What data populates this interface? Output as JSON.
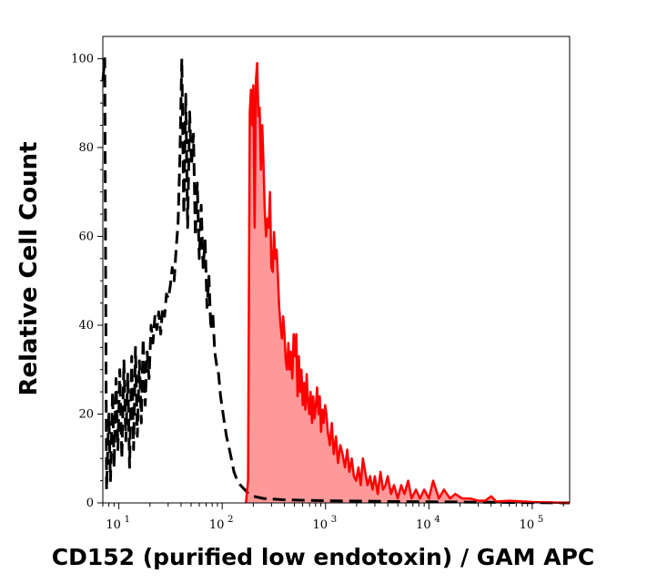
{
  "chart_data": {
    "type": "area",
    "xlabel": "CD152 (purified low endotoxin) / GAM APC",
    "ylabel": "Relative Cell Count",
    "x_scale": "log",
    "xlim": [
      7,
      230000
    ],
    "ylim": [
      0,
      105
    ],
    "x_ticks": [
      {
        "base": "10",
        "exp": "1",
        "value": 10
      },
      {
        "base": "10",
        "exp": "2",
        "value": 100
      },
      {
        "base": "10",
        "exp": "3",
        "value": 1000
      },
      {
        "base": "10",
        "exp": "4",
        "value": 10000
      },
      {
        "base": "10",
        "exp": "5",
        "value": 100000
      }
    ],
    "y_ticks": [
      "0",
      "20",
      "40",
      "60",
      "80",
      "100"
    ],
    "y_tick_values": [
      0,
      20,
      40,
      60,
      80,
      100
    ],
    "series": [
      {
        "style": "dashed",
        "color": "#000000",
        "fill": "none",
        "x": [
          7,
          7.3,
          7.6,
          8,
          8.3,
          8.7,
          9,
          9.4,
          9.8,
          10.2,
          10.7,
          11.2,
          11.7,
          12.2,
          12.7,
          13.3,
          13.9,
          14.5,
          15.1,
          15.8,
          16.5,
          17.2,
          18,
          18.8,
          19.6,
          20.5,
          21.4,
          22.3,
          23.3,
          24.3,
          25.4,
          26.5,
          27.7,
          28.9,
          30.2,
          31.5,
          32.9,
          34.3,
          35.8,
          37.4,
          39,
          40.7,
          42.5,
          44.4,
          46.3,
          48.4,
          50.5,
          52.7,
          55,
          57.4,
          60,
          62.6,
          65.4,
          68.3,
          71.3,
          74.4,
          77.7,
          81.1,
          84.7,
          88.4,
          92.3,
          96.4,
          100.6,
          105,
          110,
          115,
          120,
          125,
          130,
          140,
          150,
          165,
          180,
          200,
          250,
          400,
          1000,
          5000,
          230000
        ],
        "y": [
          95,
          100,
          3,
          20,
          5,
          25,
          8,
          28,
          12,
          30,
          10,
          32,
          14,
          29,
          8,
          33,
          12,
          35,
          15,
          32,
          18,
          37,
          22,
          34,
          28,
          40,
          36,
          42,
          39,
          43,
          38,
          44,
          42,
          47,
          46,
          49,
          53,
          50,
          57,
          63,
          78,
          100,
          65,
          92,
          62,
          88,
          76,
          83,
          60,
          72,
          55,
          67,
          53,
          59,
          44,
          51,
          39,
          43,
          34,
          31,
          29,
          24,
          21,
          18,
          15,
          13,
          11,
          9,
          7,
          5,
          4,
          3,
          2,
          1.5,
          1,
          0.7,
          0.5,
          0.3,
          0
        ]
      },
      {
        "style": "solid",
        "color": "#ff0000",
        "fill": "#ff9999",
        "x": [
          170,
          178,
          185,
          190,
          195,
          200,
          206,
          212,
          218,
          224,
          230,
          237,
          244,
          251,
          258,
          266,
          274,
          282,
          290,
          299,
          308,
          317,
          326,
          336,
          346,
          356,
          367,
          378,
          389,
          400,
          412,
          424,
          437,
          450,
          463,
          477,
          491,
          506,
          521,
          536,
          552,
          568,
          585,
          602,
          620,
          638,
          657,
          676,
          696,
          717,
          738,
          760,
          782,
          805,
          829,
          854,
          879,
          905,
          932,
          960,
          990,
          1020,
          1050,
          1100,
          1150,
          1200,
          1260,
          1320,
          1390,
          1460,
          1540,
          1620,
          1700,
          1790,
          1880,
          1980,
          2080,
          2190,
          2300,
          2420,
          2550,
          2700,
          2850,
          3000,
          3200,
          3400,
          3600,
          3800,
          4000,
          4300,
          4600,
          5000,
          5400,
          5800,
          6300,
          6800,
          7500,
          8200,
          9000,
          10000,
          11000,
          12500,
          14000,
          16000,
          18000,
          21000,
          25000,
          30000,
          35000,
          40000,
          45000,
          60000,
          100000,
          230000
        ],
        "y": [
          0,
          5,
          88,
          93,
          85,
          94,
          62,
          95,
          99,
          87,
          89,
          75,
          85,
          76,
          66,
          60,
          64,
          62,
          70,
          53,
          52,
          61,
          55,
          57,
          51,
          44,
          40,
          37,
          42,
          38,
          32,
          30,
          36,
          30,
          34,
          28,
          38,
          33,
          38,
          24,
          33,
          25,
          30,
          22,
          27,
          21,
          29,
          23,
          20,
          25,
          18,
          24,
          19,
          22,
          26,
          20,
          24,
          16,
          21,
          18,
          22,
          20,
          16,
          13,
          18,
          11,
          15,
          9,
          13,
          11,
          8,
          12,
          7,
          10,
          6,
          5,
          8,
          4,
          10,
          7,
          4,
          6,
          3,
          6,
          2,
          7,
          3,
          4,
          6,
          2,
          4,
          1,
          4,
          2,
          5,
          1,
          3,
          1,
          3,
          1,
          5,
          1,
          3,
          1,
          2,
          1,
          1,
          0.5,
          0.5,
          1.5,
          0.3,
          0.5,
          0.2,
          0
        ]
      }
    ]
  }
}
